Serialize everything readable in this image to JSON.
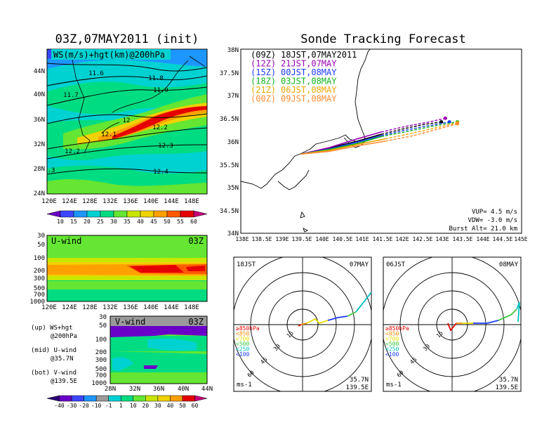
{
  "left_title": "03Z,07MAY2011 (init)",
  "right_title": "Sonde Tracking Forecast",
  "top_map": {
    "label": "WS(m/s)+hgt(km)@200hPa",
    "lat_ticks": [
      "44N",
      "40N",
      "36N",
      "32N",
      "28N",
      "24N"
    ],
    "lon_ticks": [
      "120E",
      "124E",
      "128E",
      "132E",
      "136E",
      "140E",
      "144E",
      "148E"
    ],
    "contour_labels": [
      "11.6",
      "11.8",
      "11.7",
      "11.9",
      "12",
      "12.1",
      "12.2",
      "12.2",
      "12.3",
      "12.4",
      ".3"
    ],
    "colorbar": [
      "10",
      "15",
      "20",
      "25",
      "30",
      "35",
      "40",
      "45",
      "50",
      "55",
      "60"
    ],
    "colorbar_colors": [
      "#6a00c8",
      "#3c46ff",
      "#1e96ff",
      "#00d2d2",
      "#00dc82",
      "#64e632",
      "#c8e600",
      "#f0d200",
      "#ffa000",
      "#ff5a00",
      "#e60000",
      "#c80078"
    ]
  },
  "u_panel": {
    "title": "U-wind",
    "time": "03Z",
    "p_ticks": [
      "30",
      "50",
      "100",
      "200",
      "300",
      "500",
      "700",
      "1000"
    ],
    "lon_ticks": [
      "120E",
      "124E",
      "128E",
      "132E",
      "136E",
      "140E",
      "144E",
      "148E"
    ]
  },
  "v_panel": {
    "title": "V-wind",
    "time": "03Z",
    "p_ticks": [
      "30",
      "50",
      "100",
      "200",
      "300",
      "500",
      "700",
      "1000"
    ],
    "lat_ticks": [
      "28N",
      "32N",
      "36N",
      "40N",
      "44N"
    ]
  },
  "legend_notes": [
    {
      "a": "(up) WS+hgt",
      "b": "@200hPa"
    },
    {
      "a": "(mid) U-wind",
      "b": "@35.7N"
    },
    {
      "a": "(bot) V-wind",
      "b": "@139.5E"
    }
  ],
  "bottom_colorbar": [
    "-40",
    "-30",
    "-20",
    "-10",
    "-1",
    "1",
    "10",
    "20",
    "30",
    "40",
    "50",
    "60"
  ],
  "track_map": {
    "lat_ticks": [
      "38N",
      "37.5N",
      "37N",
      "36.5N",
      "36N",
      "35.5N",
      "35N",
      "34.5N",
      "34N"
    ],
    "lon_ticks": [
      "138E",
      "138.5E",
      "139E",
      "139.5E",
      "140E",
      "140.5E",
      "141E",
      "141.5E",
      "142E",
      "142.5E",
      "143E",
      "143.5E",
      "144E",
      "144.5E",
      "145E"
    ],
    "launches": [
      {
        "z": "(09Z)",
        "t": "18JST,07MAY2011",
        "color": "#000000"
      },
      {
        "z": "(12Z)",
        "t": "21JST,07MAY",
        "color": "#9b00b4"
      },
      {
        "z": "(15Z)",
        "t": "00JST,08MAY",
        "color": "#1e3cff"
      },
      {
        "z": "(18Z)",
        "t": "03JST,08MAY",
        "color": "#14b41e"
      },
      {
        "z": "(21Z)",
        "t": "06JST,08MAY",
        "color": "#f0a500"
      },
      {
        "z": "(00Z)",
        "t": "09JST,08MAY",
        "color": "#ff8c32"
      }
    ],
    "params": [
      "VUP= 4.5 m/s",
      "VDW= -3.0 m/s",
      "Burst Alt= 21.0 km"
    ]
  },
  "hodo_left": {
    "time": "18JST",
    "date": "07MAY",
    "lat": "35.7N",
    "lon": "139.5E",
    "unit": "ms-1"
  },
  "hodo_right": {
    "time": "06JST",
    "date": "08MAY",
    "lat": "35.7N",
    "lon": "139.5E",
    "unit": "ms-1"
  },
  "hodo_rings": [
    "15",
    "30",
    "45",
    "60"
  ],
  "hodo_legend": [
    {
      "t": "≥850hPa",
      "c": "#e60000"
    },
    {
      "t": "<850",
      "c": "#ff8c00"
    },
    {
      "t": "<700",
      "c": "#e6dc00"
    },
    {
      "t": "<500",
      "c": "#3cc83c"
    },
    {
      "t": "<250",
      "c": "#00bebe"
    },
    {
      "t": "<100",
      "c": "#1e3cff"
    }
  ],
  "chart_data": {
    "type": "line",
    "xlabel": "",
    "ylabel": "",
    "xlim": [
      138.0,
      145.0
    ],
    "ylim": [
      34.0,
      38.0
    ],
    "series": [
      {
        "name": "(09Z) 18JST,07MAY2011",
        "x": [
          139.5,
          140.2,
          140.9,
          141.5,
          142.1,
          142.6,
          143.0
        ],
        "y": [
          35.72,
          35.85,
          36.0,
          36.15,
          36.28,
          36.37,
          36.42
        ]
      },
      {
        "name": "(12Z) 21JST,07MAY",
        "x": [
          139.5,
          140.2,
          140.9,
          141.5,
          142.1,
          142.7,
          143.1
        ],
        "y": [
          35.72,
          35.86,
          36.05,
          36.2,
          36.32,
          36.42,
          36.5
        ]
      },
      {
        "name": "(15Z) 00JST,08MAY",
        "x": [
          139.5,
          140.2,
          140.9,
          141.5,
          142.1,
          142.7,
          143.2
        ],
        "y": [
          35.72,
          35.83,
          35.98,
          36.12,
          36.24,
          36.34,
          36.42
        ]
      },
      {
        "name": "(18Z) 03JST,08MAY",
        "x": [
          139.5,
          140.2,
          140.9,
          141.5,
          142.2,
          142.8,
          143.4
        ],
        "y": [
          35.72,
          35.82,
          35.95,
          36.1,
          36.22,
          36.33,
          36.42
        ]
      },
      {
        "name": "(21Z) 06JST,08MAY",
        "x": [
          139.5,
          140.2,
          140.9,
          141.6,
          142.3,
          142.9,
          143.4
        ],
        "y": [
          35.72,
          35.8,
          35.93,
          36.05,
          36.18,
          36.3,
          36.4
        ]
      },
      {
        "name": "(00Z) 09JST,08MAY",
        "x": [
          139.5,
          140.2,
          140.9,
          141.6,
          142.3,
          142.9,
          143.4
        ],
        "y": [
          35.72,
          35.78,
          35.9,
          36.0,
          36.12,
          36.26,
          36.38
        ]
      }
    ]
  }
}
